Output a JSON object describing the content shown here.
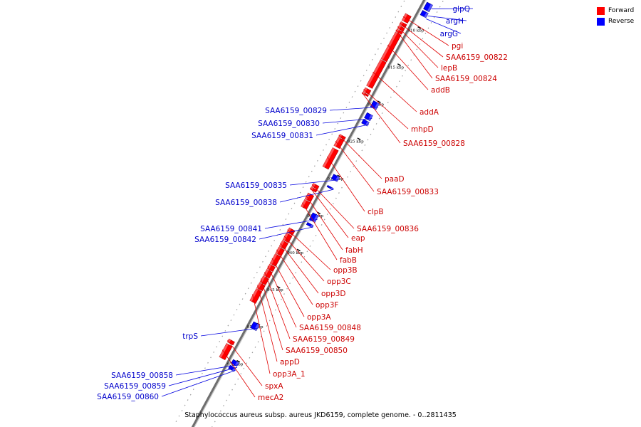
{
  "legend": {
    "forward_label": "Forward",
    "reverse_label": "Reverse",
    "forward_color": "#ff0000",
    "reverse_color": "#0000ff"
  },
  "caption": "Staphylococcus aureus subsp. aureus JKD6159, complete genome. - 0..2811435",
  "ticks": [
    {
      "kbp": 910,
      "label": "910 kbp"
    },
    {
      "kbp": 915,
      "label": "915 kbp"
    },
    {
      "kbp": 920,
      "label": "920 kbp"
    },
    {
      "kbp": 925,
      "label": "925 kbp"
    },
    {
      "kbp": 930,
      "label": "930 kbp"
    },
    {
      "kbp": 935,
      "label": "935 kbp"
    },
    {
      "kbp": 940,
      "label": "940 kbp"
    },
    {
      "kbp": 945,
      "label": "945 kbp"
    },
    {
      "kbp": 950,
      "label": "950 kbp"
    },
    {
      "kbp": 955,
      "label": "955 kbp"
    }
  ],
  "reverse_genes": [
    {
      "label": "glpQ",
      "start_kbp": 906.9,
      "end_kbp": 907.8
    },
    {
      "label": "argH",
      "start_kbp": 908.0,
      "end_kbp": 908.6
    },
    {
      "label": "argG",
      "start_kbp": null,
      "end_kbp": null
    },
    {
      "label": "SAA6159_00829",
      "start_kbp": 920.2,
      "end_kbp": 921.0
    },
    {
      "label": "SAA6159_00830",
      "start_kbp": 921.8,
      "end_kbp": 922.5
    },
    {
      "label": "SAA6159_00831",
      "start_kbp": 922.7,
      "end_kbp": 923.2
    },
    {
      "label": "SAA6159_00835",
      "start_kbp": 930.1,
      "end_kbp": 930.7
    },
    {
      "label": "SAA6159_00838",
      "start_kbp": 931.6,
      "end_kbp": 931.8
    },
    {
      "label": "SAA6159_00841",
      "start_kbp": 935.3,
      "end_kbp": 936.2
    },
    {
      "label": "SAA6159_00842",
      "start_kbp": 936.6,
      "end_kbp": 936.9
    },
    {
      "label": "trpS",
      "start_kbp": 950.0,
      "end_kbp": 950.8
    },
    {
      "label": "SAA6159_00858",
      "start_kbp": 955.1,
      "end_kbp": 955.6
    },
    {
      "label": "SAA6159_00859",
      "start_kbp": null,
      "end_kbp": null
    },
    {
      "label": "SAA6159_00860",
      "start_kbp": 955.9,
      "end_kbp": 956.3
    }
  ],
  "forward_genes": [
    {
      "label": "pgi",
      "start_kbp": 909.3,
      "end_kbp": 910.2
    },
    {
      "label": "SAA6159_00822",
      "start_kbp": 910.4,
      "end_kbp": 910.8
    },
    {
      "label": "lepB",
      "start_kbp": 910.9,
      "end_kbp": 911.3
    },
    {
      "label": "SAA6159_00824",
      "start_kbp": 911.4,
      "end_kbp": 911.7
    },
    {
      "label": "addB",
      "start_kbp": 911.8,
      "end_kbp": 915.4
    },
    {
      "label": "addA",
      "start_kbp": 915.5,
      "end_kbp": 919.0
    },
    {
      "label": "mhpD",
      "start_kbp": 919.3,
      "end_kbp": 919.8
    },
    {
      "label": "SAA6159_00828",
      "start_kbp": 919.9,
      "end_kbp": 920.1
    },
    {
      "label": "paaD",
      "start_kbp": 925.6,
      "end_kbp": 925.9
    },
    {
      "label": "SAA6159_00833",
      "start_kbp": 926.0,
      "end_kbp": 927.1
    },
    {
      "label": "clpB",
      "start_kbp": 927.4,
      "end_kbp": 929.9
    },
    {
      "label": "SAA6159_00836",
      "start_kbp": 932.2,
      "end_kbp": 932.6
    },
    {
      "label": "eap",
      "start_kbp": 932.7,
      "end_kbp": 933.0
    },
    {
      "label": "fabH",
      "start_kbp": 933.5,
      "end_kbp": 934.3
    },
    {
      "label": "fabB",
      "start_kbp": 934.4,
      "end_kbp": 935.3
    },
    {
      "label": "opp3B",
      "start_kbp": 938.2,
      "end_kbp": 938.8
    },
    {
      "label": "opp3C",
      "start_kbp": 938.9,
      "end_kbp": 939.8
    },
    {
      "label": "opp3D",
      "start_kbp": 939.9,
      "end_kbp": 940.7
    },
    {
      "label": "opp3F",
      "start_kbp": 940.8,
      "end_kbp": 941.6
    },
    {
      "label": "opp3A",
      "start_kbp": 941.7,
      "end_kbp": 943.0
    },
    {
      "label": "SAA6159_00848",
      "start_kbp": 943.1,
      "end_kbp": 943.7
    },
    {
      "label": "SAA6159_00849",
      "start_kbp": 943.8,
      "end_kbp": 944.6
    },
    {
      "label": "SAA6159_00850",
      "start_kbp": 944.7,
      "end_kbp": 945.5
    },
    {
      "label": "appD",
      "start_kbp": 945.6,
      "end_kbp": 946.3
    },
    {
      "label": "opp3A_1",
      "start_kbp": 946.4,
      "end_kbp": 948.0
    },
    {
      "label": "spxA",
      "start_kbp": 953.2,
      "end_kbp": 953.6
    },
    {
      "label": "mecA2",
      "start_kbp": 953.8,
      "end_kbp": 955.6
    }
  ]
}
